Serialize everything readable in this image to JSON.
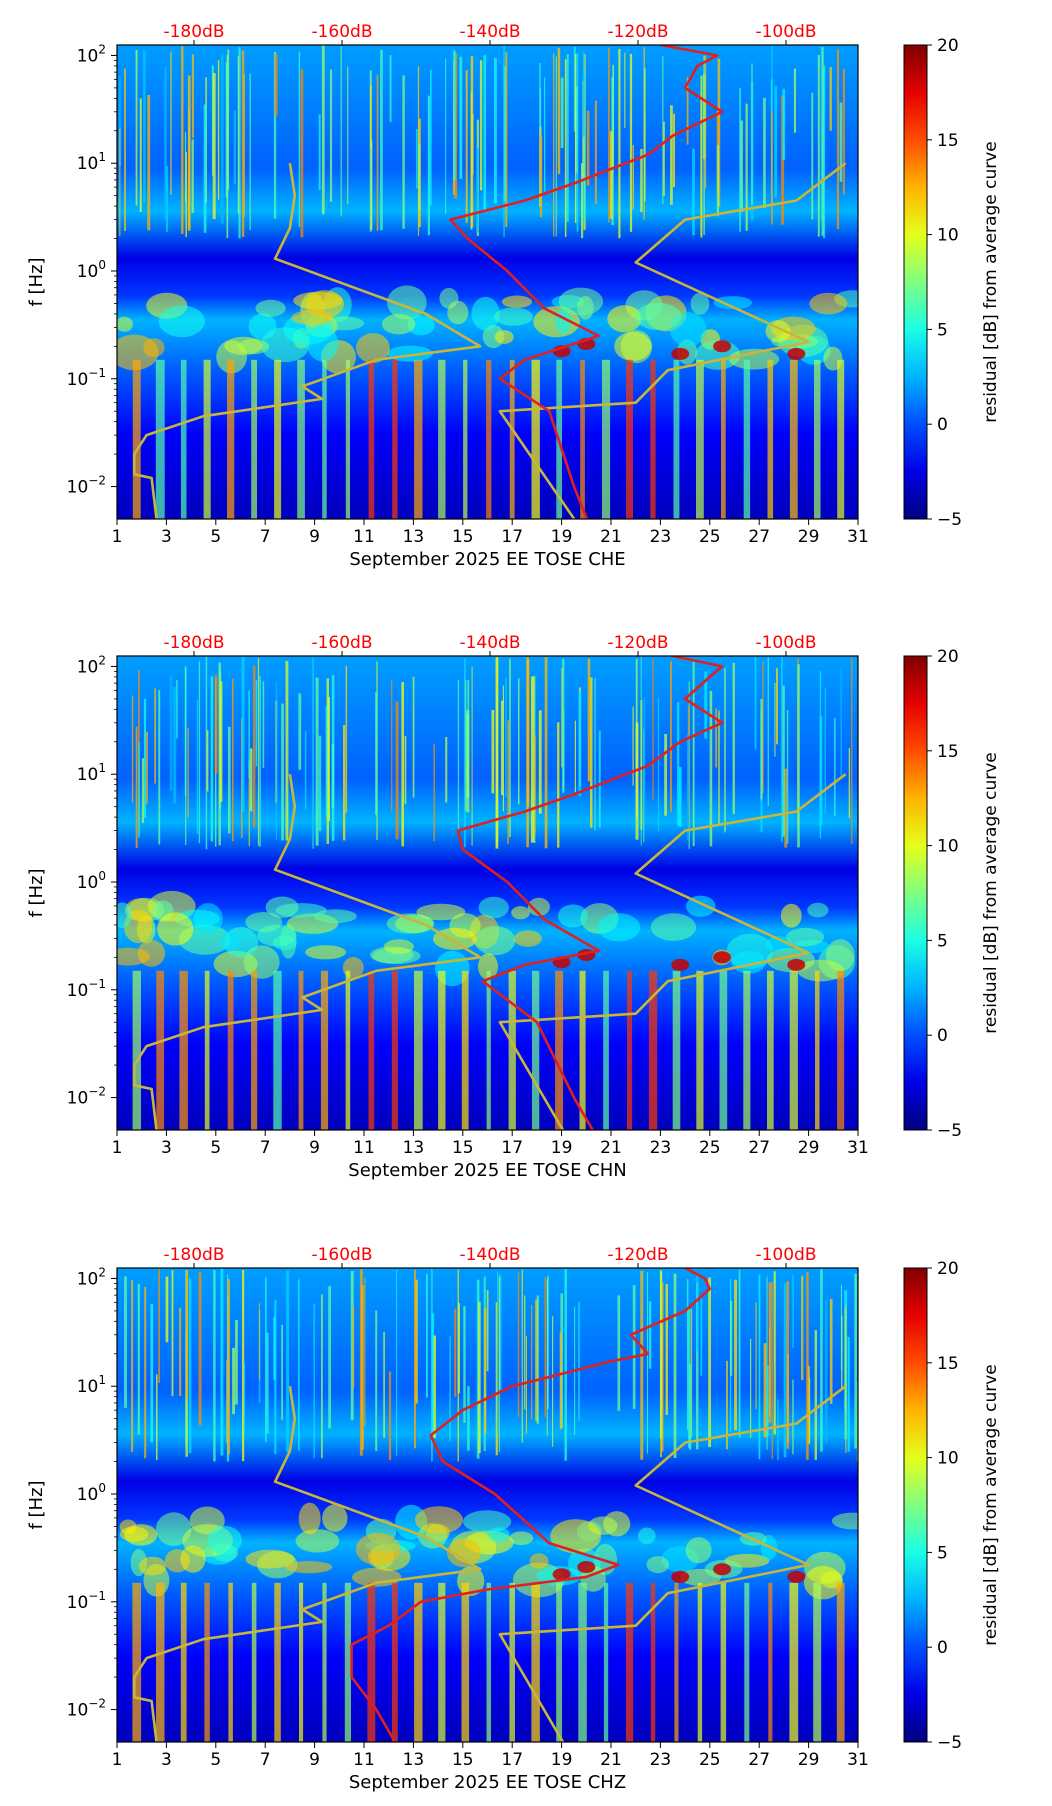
{
  "chart_data": [
    {
      "type": "heatmap",
      "title": "",
      "xlabel": "September 2025 EE TOSE  CHE",
      "ylabel": "f [Hz]",
      "x_ticks": [
        "1",
        "3",
        "5",
        "7",
        "9",
        "11",
        "13",
        "15",
        "17",
        "19",
        "21",
        "23",
        "25",
        "27",
        "29",
        "31"
      ],
      "y_ticks": [
        "10^-2",
        "10^-1",
        "10^0",
        "10^1",
        "10^2"
      ],
      "ylim_hz": [
        0.005,
        125
      ],
      "xlim_day": [
        1,
        31
      ],
      "top_db_ticks": [
        "-180dB",
        "-160dB",
        "-140dB",
        "-120dB",
        "-100dB"
      ],
      "colorbar": {
        "label": "residual [dB] from average curve",
        "min": -5,
        "max": 20,
        "ticks": [
          "20",
          "15",
          "10",
          "5",
          "0",
          "−5"
        ]
      },
      "series": [
        {
          "name": "yellow reference curve",
          "color": "#c8b63a",
          "points": [
            [
              8.0,
              10
            ],
            [
              8.2,
              5
            ],
            [
              8.0,
              2.5
            ],
            [
              7.4,
              1.3
            ],
            [
              13.5,
              0.4
            ],
            [
              15.7,
              0.2
            ],
            [
              11.5,
              0.15
            ],
            [
              8.5,
              0.085
            ],
            [
              9.3,
              0.065
            ],
            [
              4.5,
              0.045
            ],
            [
              2.2,
              0.03
            ],
            [
              1.7,
              0.02
            ],
            [
              1.7,
              0.013
            ],
            [
              2.4,
              0.012
            ],
            [
              2.6,
              0.005
            ]
          ]
        },
        {
          "name": "yellow reference curve (right)",
          "color": "#c8b63a",
          "points": [
            [
              19.8,
              0.004
            ],
            [
              16.5,
              0.05
            ],
            [
              22,
              0.06
            ],
            [
              23.3,
              0.12
            ],
            [
              29,
              0.22
            ],
            [
              22,
              1.2
            ],
            [
              24,
              3
            ],
            [
              28.5,
              4.5
            ],
            [
              30.5,
              10
            ]
          ]
        },
        {
          "name": "red median curve",
          "color": "#e02020",
          "points": [
            [
              20.2,
              0.004
            ],
            [
              19.5,
              0.01
            ],
            [
              18.5,
              0.05
            ],
            [
              16.5,
              0.1
            ],
            [
              17.5,
              0.15
            ],
            [
              20.5,
              0.25
            ],
            [
              18.3,
              0.45
            ],
            [
              16.8,
              1.0
            ],
            [
              15.2,
              2.0
            ],
            [
              14.5,
              3.0
            ],
            [
              17.5,
              4.5
            ],
            [
              19.5,
              6.5
            ],
            [
              20.5,
              8
            ],
            [
              22.5,
              12
            ],
            [
              23.5,
              18
            ],
            [
              25.5,
              30
            ],
            [
              24,
              50
            ],
            [
              24.5,
              80
            ],
            [
              25.3,
              100
            ],
            [
              23,
              125
            ]
          ]
        }
      ]
    },
    {
      "type": "heatmap",
      "title": "",
      "xlabel": "September 2025 EE TOSE  CHN",
      "ylabel": "f [Hz]",
      "x_ticks": [
        "1",
        "3",
        "5",
        "7",
        "9",
        "11",
        "13",
        "15",
        "17",
        "19",
        "21",
        "23",
        "25",
        "27",
        "29",
        "31"
      ],
      "y_ticks": [
        "10^-2",
        "10^-1",
        "10^0",
        "10^1",
        "10^2"
      ],
      "ylim_hz": [
        0.005,
        125
      ],
      "xlim_day": [
        1,
        31
      ],
      "top_db_ticks": [
        "-180dB",
        "-160dB",
        "-140dB",
        "-120dB",
        "-100dB"
      ],
      "colorbar": {
        "label": "residual [dB] from average curve",
        "min": -5,
        "max": 20,
        "ticks": [
          "20",
          "15",
          "10",
          "5",
          "0",
          "−5"
        ]
      },
      "series": [
        {
          "name": "yellow reference curve",
          "color": "#c8b63a",
          "points": [
            [
              8.0,
              10
            ],
            [
              8.2,
              5
            ],
            [
              8.0,
              2.5
            ],
            [
              7.4,
              1.3
            ],
            [
              13.5,
              0.4
            ],
            [
              15.7,
              0.2
            ],
            [
              11.5,
              0.15
            ],
            [
              8.5,
              0.085
            ],
            [
              9.3,
              0.065
            ],
            [
              4.5,
              0.045
            ],
            [
              2.2,
              0.03
            ],
            [
              1.7,
              0.02
            ],
            [
              1.7,
              0.013
            ],
            [
              2.4,
              0.012
            ],
            [
              2.6,
              0.005
            ]
          ]
        },
        {
          "name": "yellow reference curve (right)",
          "color": "#c8b63a",
          "points": [
            [
              19.3,
              0.004
            ],
            [
              16.5,
              0.05
            ],
            [
              22,
              0.06
            ],
            [
              23.3,
              0.12
            ],
            [
              29,
              0.22
            ],
            [
              22,
              1.2
            ],
            [
              24,
              3
            ],
            [
              28.5,
              4.5
            ],
            [
              30.5,
              10
            ]
          ]
        },
        {
          "name": "red median curve",
          "color": "#e02020",
          "points": [
            [
              20.5,
              0.004
            ],
            [
              19.5,
              0.01
            ],
            [
              18,
              0.05
            ],
            [
              15.8,
              0.12
            ],
            [
              17.5,
              0.17
            ],
            [
              20.5,
              0.23
            ],
            [
              18.3,
              0.45
            ],
            [
              16.8,
              1.0
            ],
            [
              15.0,
              2.0
            ],
            [
              14.8,
              3.0
            ],
            [
              17.5,
              4.5
            ],
            [
              19.5,
              6.5
            ],
            [
              20.5,
              8
            ],
            [
              22.5,
              12
            ],
            [
              23.8,
              20
            ],
            [
              25.5,
              30
            ],
            [
              24,
              50
            ],
            [
              25,
              80
            ],
            [
              25.5,
              100
            ],
            [
              23.5,
              125
            ]
          ]
        }
      ]
    },
    {
      "type": "heatmap",
      "title": "",
      "xlabel": "September 2025 EE TOSE  CHZ",
      "ylabel": "f [Hz]",
      "x_ticks": [
        "1",
        "3",
        "5",
        "7",
        "9",
        "11",
        "13",
        "15",
        "17",
        "19",
        "21",
        "23",
        "25",
        "27",
        "29",
        "31"
      ],
      "y_ticks": [
        "10^-2",
        "10^-1",
        "10^0",
        "10^1",
        "10^2"
      ],
      "ylim_hz": [
        0.005,
        125
      ],
      "xlim_day": [
        1,
        31
      ],
      "top_db_ticks": [
        "-180dB",
        "-160dB",
        "-140dB",
        "-120dB",
        "-100dB"
      ],
      "colorbar": {
        "label": "residual [dB] from average curve",
        "min": -5,
        "max": 20,
        "ticks": [
          "20",
          "15",
          "10",
          "5",
          "0",
          "−5"
        ]
      },
      "series": [
        {
          "name": "yellow reference curve",
          "color": "#c8b63a",
          "points": [
            [
              8.0,
              10
            ],
            [
              8.2,
              5
            ],
            [
              8.0,
              2.5
            ],
            [
              7.4,
              1.3
            ],
            [
              13.5,
              0.4
            ],
            [
              15.7,
              0.2
            ],
            [
              11.5,
              0.15
            ],
            [
              8.5,
              0.085
            ],
            [
              9.3,
              0.065
            ],
            [
              4.5,
              0.045
            ],
            [
              2.2,
              0.03
            ],
            [
              1.7,
              0.02
            ],
            [
              1.7,
              0.013
            ],
            [
              2.4,
              0.012
            ],
            [
              2.6,
              0.005
            ]
          ]
        },
        {
          "name": "yellow reference curve (right)",
          "color": "#c8b63a",
          "points": [
            [
              19.3,
              0.004
            ],
            [
              16.5,
              0.05
            ],
            [
              22,
              0.06
            ],
            [
              23.3,
              0.12
            ],
            [
              29,
              0.22
            ],
            [
              22,
              1.2
            ],
            [
              24,
              3
            ],
            [
              28.5,
              4.5
            ],
            [
              30.5,
              10
            ]
          ]
        },
        {
          "name": "red median curve",
          "color": "#e02020",
          "points": [
            [
              12.5,
              0.004
            ],
            [
              11.5,
              0.01
            ],
            [
              10.5,
              0.02
            ],
            [
              10.5,
              0.04
            ],
            [
              12,
              0.06
            ],
            [
              13.3,
              0.1
            ],
            [
              16,
              0.13
            ],
            [
              20,
              0.17
            ],
            [
              21.3,
              0.22
            ],
            [
              18.5,
              0.35
            ],
            [
              16.3,
              1.0
            ],
            [
              14.2,
              2.0
            ],
            [
              13.7,
              3.5
            ],
            [
              15,
              6
            ],
            [
              17,
              10
            ],
            [
              19,
              13
            ],
            [
              21,
              17
            ],
            [
              22.5,
              20
            ],
            [
              21.8,
              30
            ],
            [
              24,
              50
            ],
            [
              25,
              80
            ],
            [
              24.8,
              100
            ],
            [
              24,
              125
            ]
          ]
        }
      ]
    }
  ]
}
